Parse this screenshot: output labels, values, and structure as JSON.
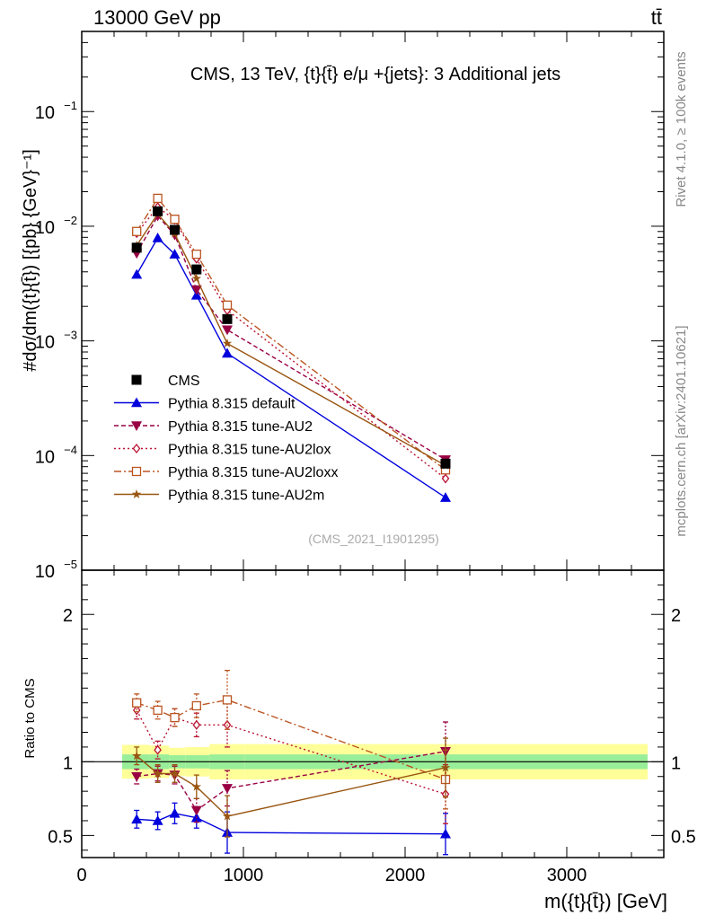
{
  "header": {
    "left_label": "13000 GeV pp",
    "right_label": "tt̄"
  },
  "side": {
    "rivet_label": "Rivet 4.1.0, ≥ 100k events",
    "mcplots_label": "mcplots.cern.ch [arXiv:2401.10621]"
  },
  "chart_data": {
    "type": "line",
    "title": "CMS, 13 TeV, {t}{t̄} e/μ +{jets}: 3 Additional jets",
    "watermark": "(CMS_2021_I1901295)",
    "xlabel": "m({t}{t̄}) [GeV]",
    "ylabel": "#dσ/dm({t}{t̄}) [{pb} {GeV}⁻¹]",
    "ratio_ylabel": "Ratio to CMS",
    "xlim": [
      0,
      3600
    ],
    "ylim": [
      1e-05,
      0.5
    ],
    "ratio_ylim": [
      0.35,
      2.3
    ],
    "x_ticks": [
      "0",
      "1000",
      "2000",
      "3000"
    ],
    "y_ticks": [
      {
        "base": "10",
        "exp": "−5",
        "value": 1e-05
      },
      {
        "base": "10",
        "exp": "−4",
        "value": 0.0001
      },
      {
        "base": "10",
        "exp": "−3",
        "value": 0.001
      },
      {
        "base": "10",
        "exp": "−2",
        "value": 0.01
      },
      {
        "base": "10",
        "exp": "−1",
        "value": 0.1
      }
    ],
    "ratio_ticks": [
      "0.5",
      "1",
      "2"
    ],
    "ratio_tick_values": [
      0.5,
      1,
      2
    ],
    "band_edges": [
      250,
      420,
      540,
      640,
      790,
      1010,
      3500
    ],
    "band_inner": [
      0.05,
      0.05,
      0.045,
      0.045,
      0.05,
      0.05
    ],
    "band_outer": [
      0.115,
      0.11,
      0.095,
      0.1,
      0.12,
      0.12
    ],
    "data": {
      "name": "CMS",
      "x": [
        340,
        470,
        575,
        710,
        900,
        2250
      ],
      "y": [
        0.0065,
        0.0135,
        0.0093,
        0.0042,
        0.00155,
        8.5e-05
      ]
    },
    "series": [
      {
        "name": "Pythia 8.315 default",
        "color": "#0000dd",
        "dash": "",
        "marker": "tri-up",
        "y": [
          0.0038,
          0.0079,
          0.0057,
          0.0025,
          0.00078,
          4.3e-05
        ],
        "ratio": [
          0.61,
          0.6,
          0.65,
          0.62,
          0.52,
          0.51
        ],
        "ratio_err": [
          0.06,
          0.06,
          0.07,
          0.07,
          0.14,
          0.14
        ]
      },
      {
        "name": "Pythia 8.315 tune-AU2",
        "color": "#990044",
        "dash": "5,3",
        "marker": "tri-down",
        "y": [
          0.0058,
          0.0123,
          0.0084,
          0.0028,
          0.00125,
          9.2e-05
        ],
        "ratio": [
          0.9,
          0.92,
          0.91,
          0.67,
          0.82,
          1.07
        ],
        "ratio_err": [
          0.05,
          0.05,
          0.06,
          0.08,
          0.12,
          0.2
        ]
      },
      {
        "name": "Pythia 8.315 tune-AU2lox",
        "color": "#bb1133",
        "dash": "2,3",
        "marker": "diamond",
        "y": [
          0.0087,
          0.0147,
          0.0114,
          0.0052,
          0.00185,
          6.3e-05
        ],
        "ratio": [
          1.35,
          1.08,
          1.3,
          1.25,
          1.25,
          0.78
        ],
        "ratio_err": [
          0.06,
          0.06,
          0.06,
          0.08,
          0.15,
          0.2
        ]
      },
      {
        "name": "Pythia 8.315 tune-AU2loxx",
        "color": "#bb5522",
        "dash": "8,3,2,3",
        "marker": "square-open",
        "y": [
          0.009,
          0.0175,
          0.0115,
          0.0057,
          0.00205,
          7.5e-05
        ],
        "ratio": [
          1.4,
          1.35,
          1.3,
          1.38,
          1.42,
          0.88
        ],
        "ratio_err": [
          0.06,
          0.06,
          0.06,
          0.08,
          0.2,
          0.2
        ]
      },
      {
        "name": "Pythia 8.315 tune-AU2m",
        "color": "#995511",
        "dash": "",
        "marker": "star",
        "y": [
          0.0068,
          0.0128,
          0.0086,
          0.0035,
          0.00095,
          8.2e-05
        ],
        "ratio": [
          1.04,
          0.92,
          0.92,
          0.83,
          0.63,
          0.96
        ],
        "ratio_err": [
          0.06,
          0.06,
          0.06,
          0.08,
          0.14,
          0.2
        ]
      }
    ]
  }
}
